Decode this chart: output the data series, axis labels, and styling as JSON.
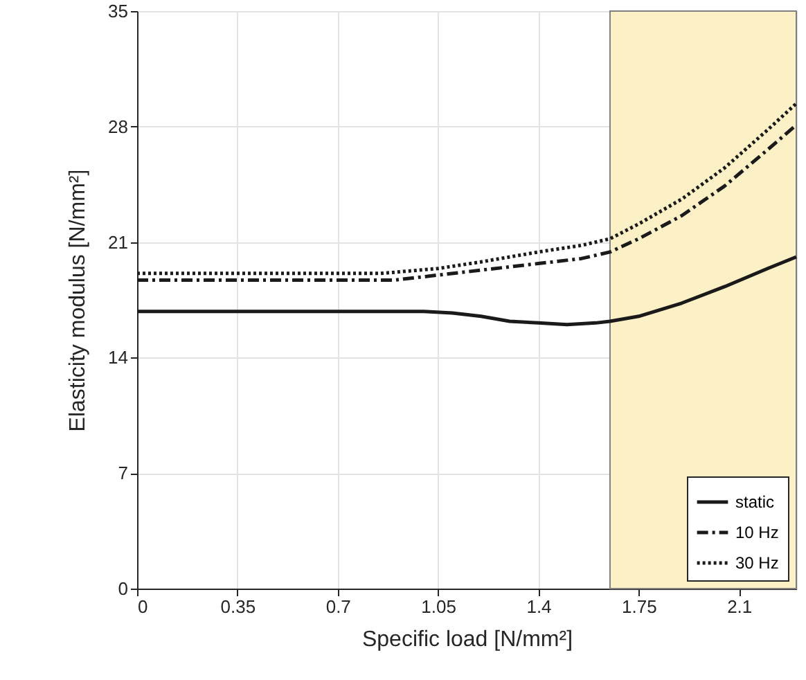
{
  "chart_data": {
    "type": "line",
    "xlabel": "Specific load [N/mm²]",
    "ylabel": "Elasticity modulus [N/mm²]",
    "xlim": [
      0,
      2.3
    ],
    "xticks": [
      0,
      0.35,
      0.7,
      1.05,
      1.4,
      1.75,
      2.1
    ],
    "ylim": [
      0,
      35
    ],
    "yticks": [
      0,
      7,
      14,
      21,
      28,
      35
    ],
    "grid": true,
    "legend": "bottom right",
    "marker": "none",
    "bands": [
      {
        "axis": "x",
        "from": 1.65,
        "to": 2.3,
        "color": "#fcf0c6"
      }
    ],
    "series": [
      {
        "name": "static",
        "color": "#1a1a1a",
        "line_style": "solid",
        "x": [
          0,
          0.5,
          0.9,
          1.0,
          1.1,
          1.2,
          1.3,
          1.4,
          1.5,
          1.6,
          1.65,
          1.75,
          1.9,
          2.05,
          2.2,
          2.3
        ],
        "values": [
          16.8,
          16.8,
          16.8,
          16.8,
          16.7,
          16.5,
          16.2,
          16.1,
          16.0,
          16.1,
          16.2,
          16.5,
          17.3,
          18.3,
          19.4,
          20.1
        ]
      },
      {
        "name": "10 Hz",
        "color": "#1a1a1a",
        "line_style": "dashed",
        "x": [
          0,
          0.5,
          0.9,
          1.05,
          1.2,
          1.4,
          1.55,
          1.65,
          1.75,
          1.9,
          2.05,
          2.2,
          2.3
        ],
        "values": [
          18.7,
          18.7,
          18.7,
          19.0,
          19.3,
          19.7,
          20.0,
          20.4,
          21.2,
          22.6,
          24.4,
          26.6,
          28.1
        ]
      },
      {
        "name": "30 Hz",
        "color": "#1a1a1a",
        "line_style": "dotted",
        "x": [
          0,
          0.5,
          0.85,
          1.05,
          1.2,
          1.4,
          1.55,
          1.65,
          1.75,
          1.9,
          2.05,
          2.2,
          2.3
        ],
        "values": [
          19.1,
          19.1,
          19.1,
          19.4,
          19.8,
          20.4,
          20.8,
          21.2,
          22.1,
          23.6,
          25.5,
          27.8,
          29.4
        ]
      }
    ]
  }
}
